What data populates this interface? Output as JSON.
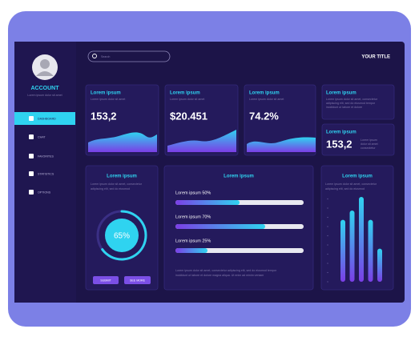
{
  "sidebar": {
    "account": "ACCOUNT",
    "account_text": "Lorem ipsum dolor sit amet",
    "menu": [
      "DASHBOARD",
      "CHAT",
      "FAVORITES",
      "STATISTICS",
      "OPTIONS"
    ]
  },
  "header": {
    "search_placeholder": "Search",
    "title": "YOUR TITLE"
  },
  "stat_cards": [
    {
      "title": "Lorem ipsum",
      "text": "Lorem ipsum dolor sit amet",
      "value": "153,2"
    },
    {
      "title": "Lorem ipsum",
      "text": "Lorem ipsum dolor sit amet",
      "value": "$20.451"
    },
    {
      "title": "Lorem ipsum",
      "text": "Lorem ipsum dolor sit amet",
      "value": "74.2%"
    }
  ],
  "info_card": {
    "title": "Lorem ipsum",
    "lines": [
      "Lorem ipsum dolor sit amet, consectetur",
      "adipiscing elit, sed do eiusmod tempor",
      "incididunt ut labore et dolore"
    ]
  },
  "mini_card": {
    "title": "Lorem ipsum",
    "value": "153,2",
    "lines": [
      "Lorem ipsum",
      "dolor sit amet",
      "consectetur"
    ]
  },
  "donut_card": {
    "title": "Lorem ipsum",
    "lines": [
      "Lorem ipsum dolor sit amet, consectetur",
      "adipiscing elit, sed do eiusmod"
    ],
    "chart": {
      "type": "donut",
      "value": 65,
      "value_label": "65%",
      "max": 100
    },
    "buttons": [
      "SUBMIT",
      "SEE MORE"
    ]
  },
  "progress_card": {
    "title": "Lorem ipsum",
    "xlim": [
      0,
      100
    ],
    "items": [
      {
        "label": "Lorem ipsum 50%",
        "value": 50
      },
      {
        "label": "Lorem ipsum 70%",
        "value": 70
      },
      {
        "label": "Lorem ipsum 25%",
        "value": 25
      }
    ],
    "lines": [
      "Lorem ipsum dolor sit amet, consectetur adipiscing elit, sed do eiusmod tempor",
      "incididunt ut labore et dolore magna aliqua. Ut enim ad minim veniam"
    ]
  },
  "bar_card": {
    "title": "Lorem ipsum",
    "lines": [
      "Lorem ipsum dolor sit amet, consectetur",
      "adipiscing elit, sed do eiusmod"
    ],
    "chart": {
      "type": "bar",
      "values": [
        73,
        84,
        100,
        73,
        39
      ],
      "ylim": [
        0,
        100
      ]
    }
  }
}
